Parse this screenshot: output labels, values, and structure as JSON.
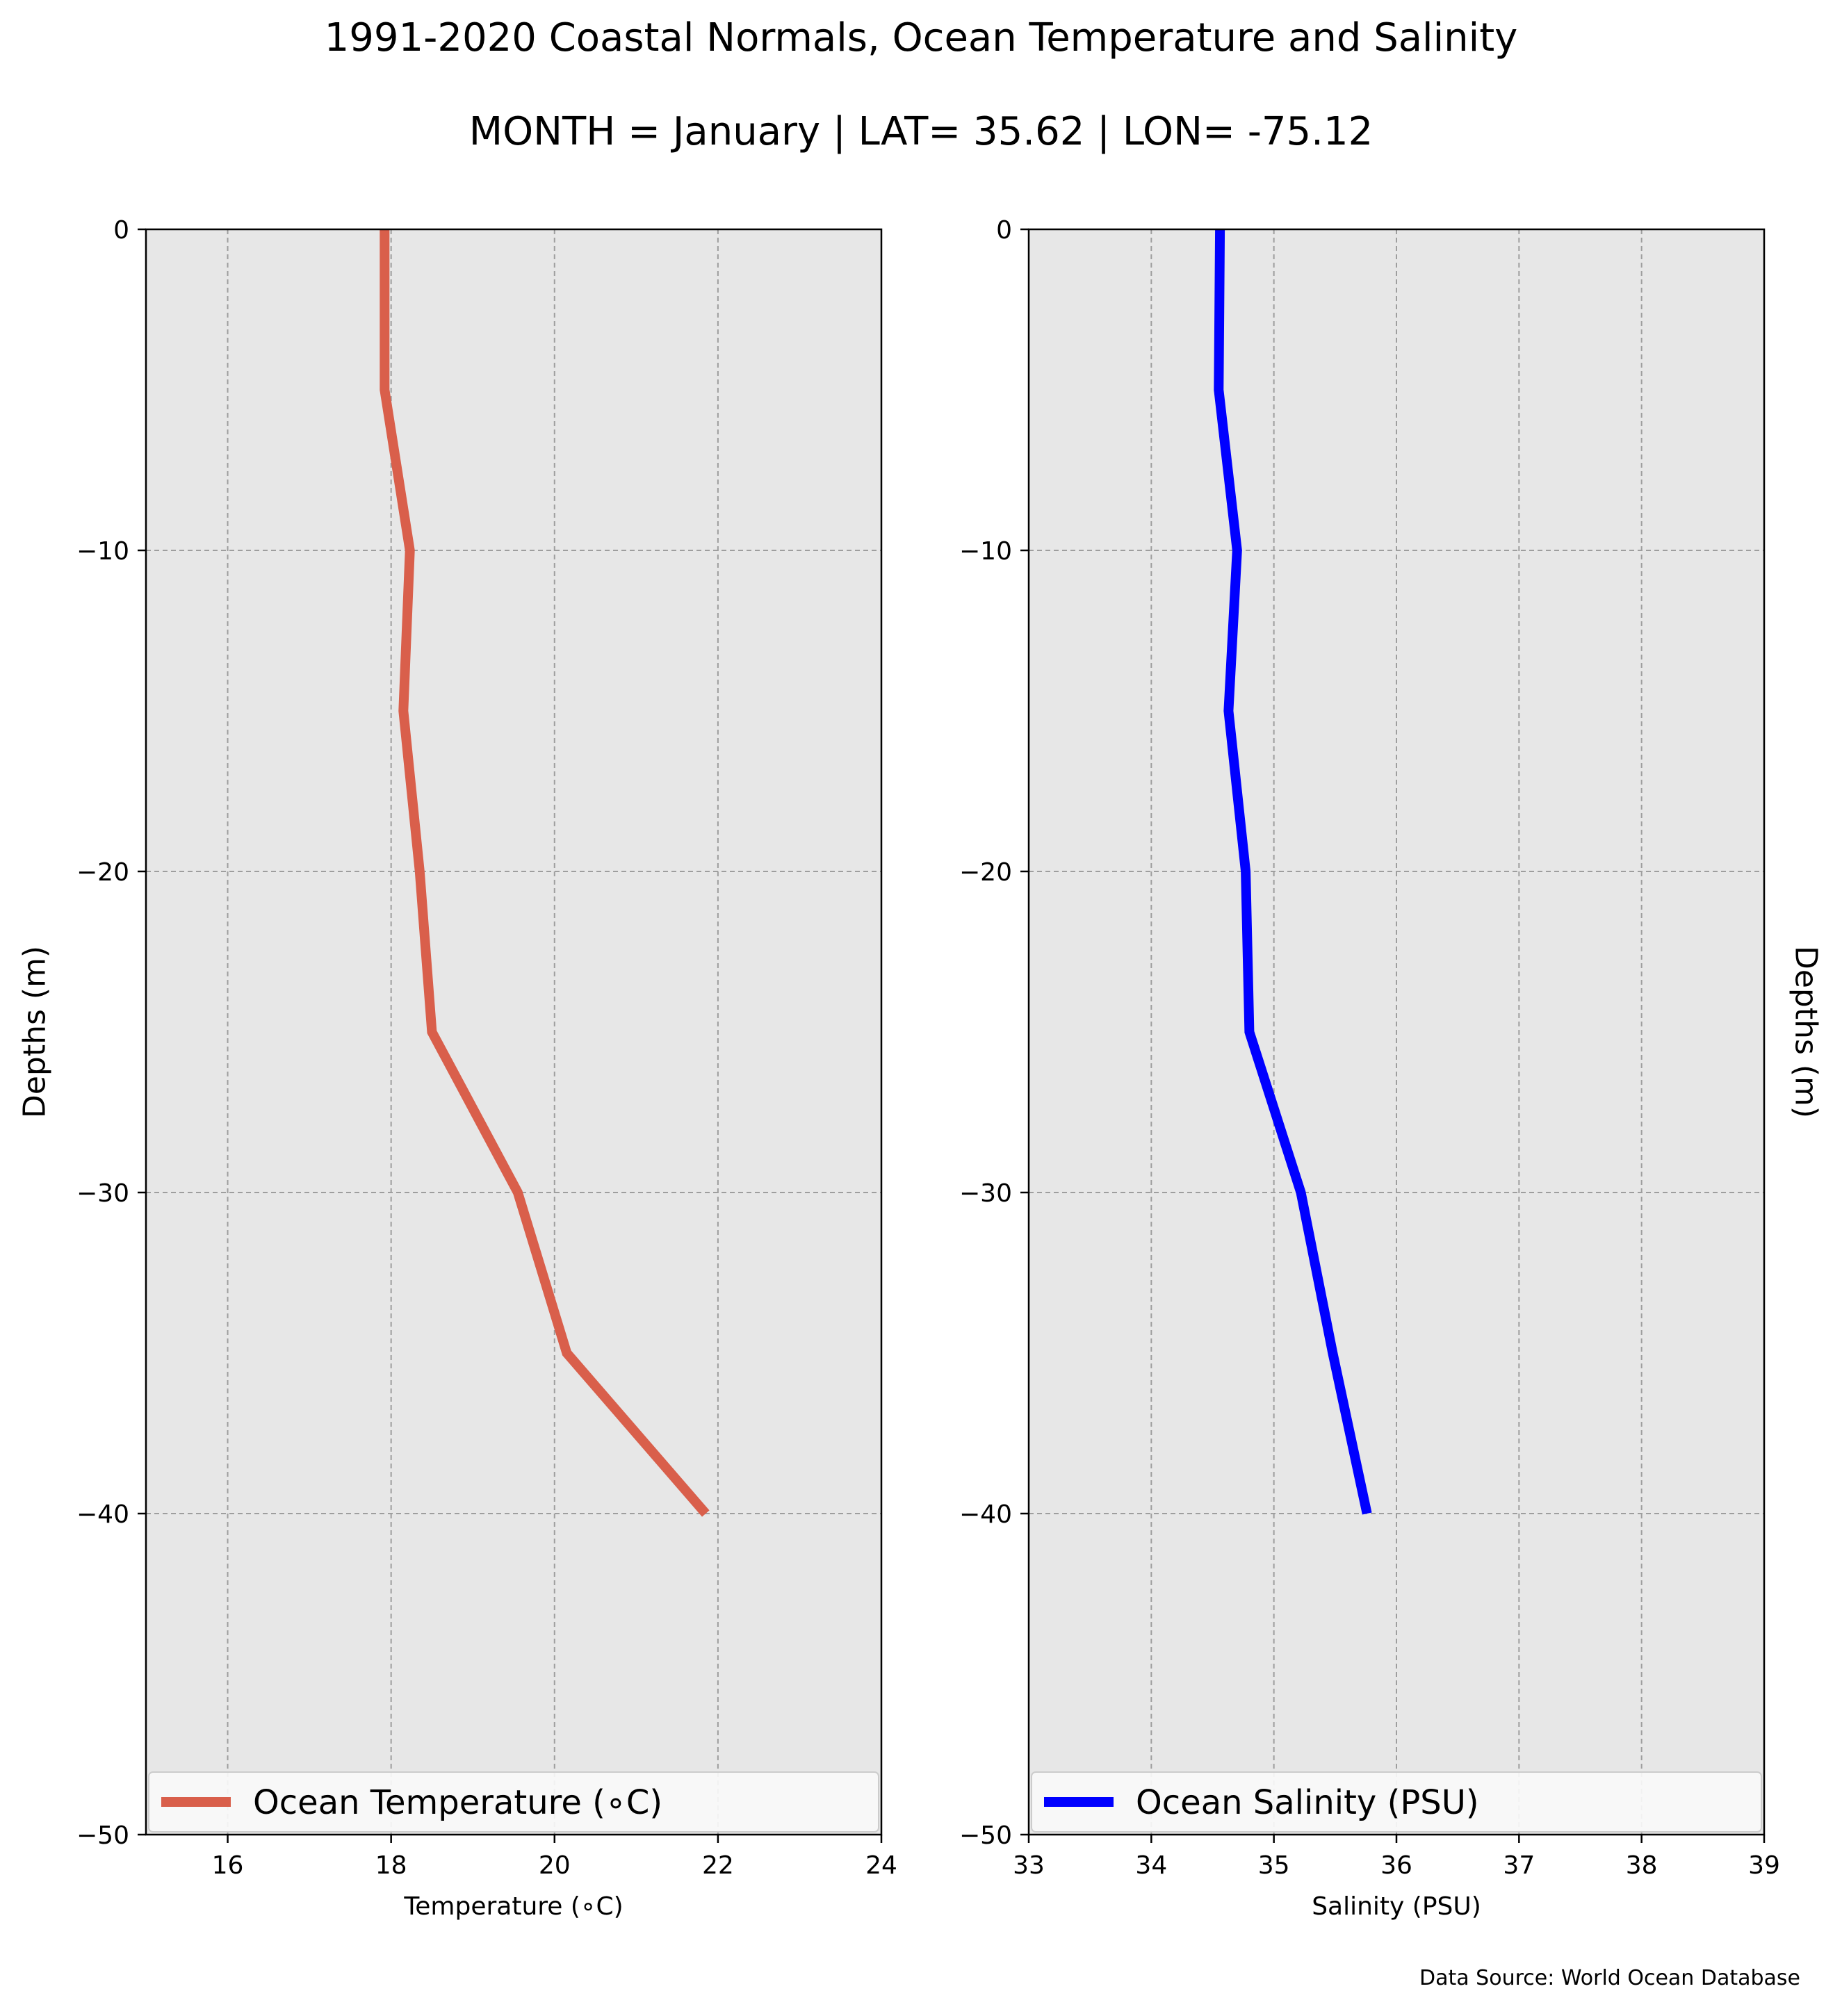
{
  "figure": {
    "title_line1": "1991-2020 Coastal Normals, Ocean Temperature and Salinity",
    "title_line2": "MONTH = January | LAT= 35.62 | LON= -75.12",
    "source": "Data Source: World Ocean Database",
    "plot_background": "#e7e7e7",
    "grid_color": "#9e9e9e"
  },
  "chart_data": [
    {
      "type": "line",
      "xlabel": "Temperature ($^\\circ$C)",
      "xlabel_display": "Temperature (∘C)",
      "ylabel": "Depths (m)",
      "xlim": [
        15,
        24
      ],
      "ylim": [
        -50,
        0
      ],
      "xticks": [
        16,
        18,
        20,
        22,
        24
      ],
      "xtick_labels": [
        "16",
        "18",
        "20",
        "22",
        "24"
      ],
      "yticks": [
        0,
        -10,
        -20,
        -30,
        -40,
        -50
      ],
      "ytick_labels": [
        "0",
        "−10",
        "−20",
        "−30",
        "−40",
        "−50"
      ],
      "grid": true,
      "legend_placement": "bottom",
      "series": [
        {
          "name": "Ocean Temperature (∘C)",
          "color": "#d95f4b",
          "x": [
            17.92,
            17.92,
            18.23,
            18.15,
            18.35,
            18.5,
            19.55,
            20.15,
            21.85
          ],
          "y": [
            0,
            -5,
            -10,
            -15,
            -20,
            -25,
            -30,
            -35,
            -40
          ]
        }
      ]
    },
    {
      "type": "line",
      "xlabel": "Salinity (PSU)",
      "ylabel": "Depths (m)",
      "xlim": [
        33,
        39
      ],
      "ylim": [
        -50,
        0
      ],
      "xticks": [
        33,
        34,
        35,
        36,
        37,
        38,
        39
      ],
      "xtick_labels": [
        "33",
        "34",
        "35",
        "36",
        "37",
        "38",
        "39"
      ],
      "yticks": [
        0,
        -10,
        -20,
        -30,
        -40,
        -50
      ],
      "ytick_labels": [
        "0",
        "−10",
        "−20",
        "−30",
        "−40",
        "−50"
      ],
      "grid": true,
      "legend_placement": "bottom",
      "series": [
        {
          "name": "Ocean Salinity (PSU)",
          "color": "#0000ff",
          "x": [
            34.56,
            34.55,
            34.7,
            34.63,
            34.77,
            34.8,
            35.22,
            35.48,
            35.76
          ],
          "y": [
            0,
            -5,
            -10,
            -15,
            -20,
            -25,
            -30,
            -35,
            -40
          ]
        }
      ]
    }
  ]
}
